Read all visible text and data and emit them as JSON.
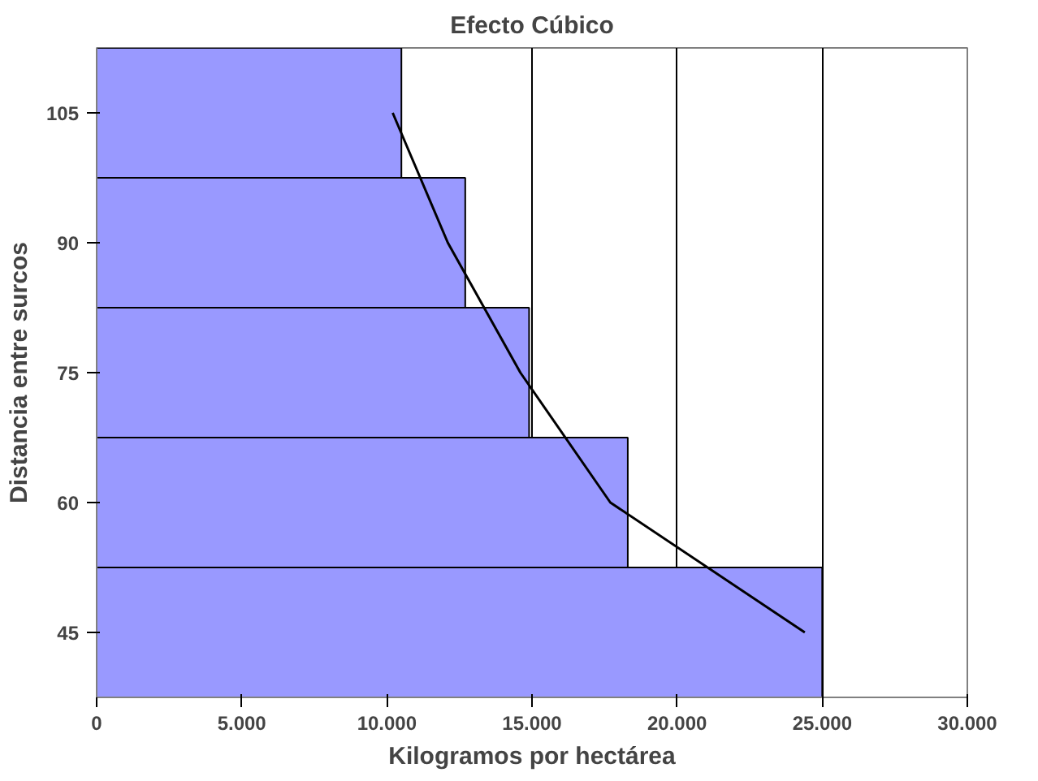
{
  "chart_data": {
    "type": "bar",
    "orientation": "horizontal",
    "title": "Efecto Cúbico",
    "xlabel": "Kilogramos por hectárea",
    "ylabel": "Distancia entre surcos",
    "categories": [
      "105",
      "90",
      "75",
      "60",
      "45"
    ],
    "series": [
      {
        "color": "#9999ff",
        "values": [
          10500,
          12700,
          14900,
          18300,
          25000
        ]
      },
      {
        "type": "line",
        "color": "#000000",
        "values": [
          10200,
          12100,
          14600,
          17700,
          24400
        ]
      }
    ],
    "xlim": [
      0,
      30000
    ],
    "xticks": [
      {
        "value": 0,
        "label": "0"
      },
      {
        "value": 5000,
        "label": "5.000"
      },
      {
        "value": 10000,
        "label": "10.000"
      },
      {
        "value": 15000,
        "label": "15.000"
      },
      {
        "value": 20000,
        "label": "20.000"
      },
      {
        "value": 25000,
        "label": "25.000"
      },
      {
        "value": 30000,
        "label": "30.000"
      }
    ],
    "grid": "x"
  }
}
